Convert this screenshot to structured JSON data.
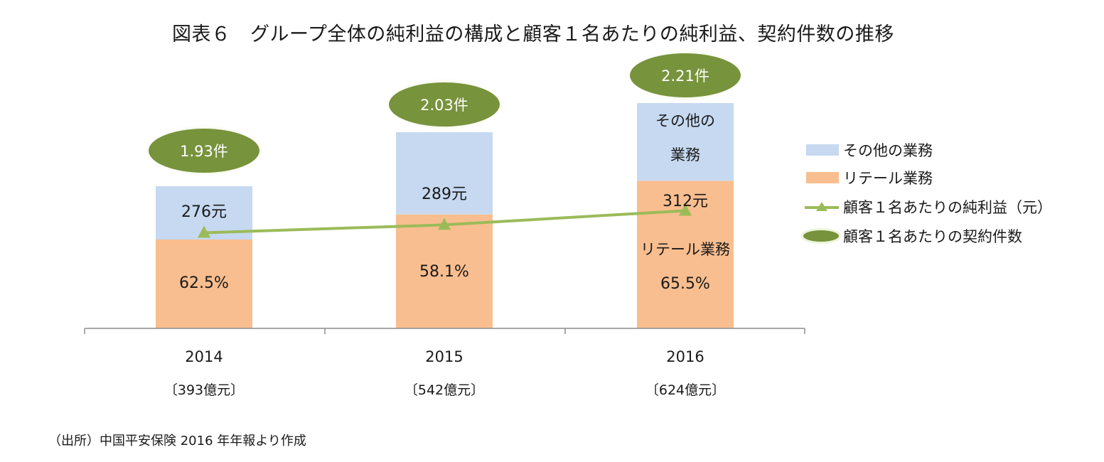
{
  "chart_data": {
    "type": "bar",
    "title": "図表６　グループ全体の純利益の構成と顧客１名あたりの純利益、契約件数の推移",
    "categories": [
      "2014",
      "2015",
      "2016"
    ],
    "category_sublabels": [
      "〔393億元〕",
      "〔542億元〕",
      "〔624億元〕"
    ],
    "stacked": true,
    "series": [
      {
        "name": "リテール業務",
        "type": "bar",
        "color": "#f9be8f",
        "values": [
          62.5,
          58.1,
          65.5
        ],
        "labels": [
          "62.5%",
          "58.1%",
          "65.5%"
        ]
      },
      {
        "name": "その他の業務",
        "type": "bar",
        "color": "#c6d9f1",
        "values": [
          37.5,
          41.9,
          34.5
        ]
      },
      {
        "name": "顧客１名あたりの純利益（元）",
        "type": "line",
        "marker": "triangle",
        "color": "#9bbb59",
        "values": [
          276,
          289,
          312
        ],
        "labels": [
          "276元",
          "289元",
          "312元"
        ]
      },
      {
        "name": "顧客１名あたりの契約件数",
        "type": "ellipse",
        "color": "#77933c",
        "values": [
          1.93,
          2.03,
          2.21
        ],
        "labels": [
          "1.93件",
          "2.03件",
          "2.21件"
        ]
      }
    ],
    "inline_annotations": {
      "other_2016": "その他の業務",
      "retail_2016": "リテール業務"
    },
    "legend_position": "right",
    "grid": false
  },
  "source": "（出所）中国平安保険 2016 年年報より作成"
}
